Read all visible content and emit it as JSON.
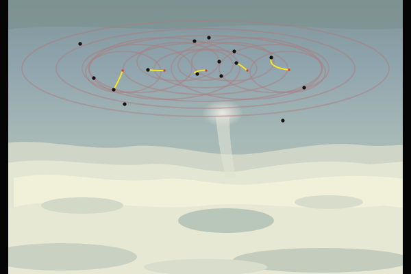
{
  "scene": {
    "description_free": true,
    "colors": {
      "sky_top": "#8fa2a8",
      "sky_mid": "#9fb3b4",
      "cloud_light": "#e8ebd6",
      "cloud_pale": "#f2f1da",
      "ring": "#b07a7c",
      "dot": "#111111",
      "trail": "#ffe61e",
      "trail_tip": "#e8322e",
      "letterbox": "#050505"
    },
    "icons": [
      "black-dot-marker",
      "yellow-trail-marker",
      "orbit-ring"
    ]
  }
}
